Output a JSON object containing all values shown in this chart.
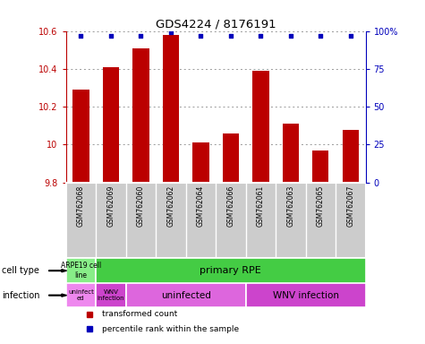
{
  "title": "GDS4224 / 8176191",
  "samples": [
    "GSM762068",
    "GSM762069",
    "GSM762060",
    "GSM762062",
    "GSM762064",
    "GSM762066",
    "GSM762061",
    "GSM762063",
    "GSM762065",
    "GSM762067"
  ],
  "transformed_counts": [
    10.29,
    10.41,
    10.51,
    10.58,
    10.01,
    10.06,
    10.39,
    10.11,
    9.97,
    10.08
  ],
  "percentile_ranks": [
    97,
    97,
    97,
    99,
    97,
    97,
    97,
    97,
    97,
    97
  ],
  "ylim": [
    9.8,
    10.6
  ],
  "yticks": [
    9.8,
    10.0,
    10.2,
    10.4,
    10.6
  ],
  "ytick_labels": [
    "9.8",
    "10",
    "10.2",
    "10.4",
    "10.6"
  ],
  "right_yticks": [
    0,
    25,
    50,
    75,
    100
  ],
  "right_ylim": [
    0,
    100
  ],
  "bar_color": "#bb0000",
  "dot_color": "#0000bb",
  "arpe_color": "#88ee88",
  "rpe_color": "#44cc44",
  "inf_uninfect1_color": "#ee88ee",
  "inf_wnv1_color": "#cc44cc",
  "inf_uninfect2_color": "#dd66dd",
  "inf_wnv2_color": "#cc44cc",
  "bg_color": "#ffffff",
  "grid_color": "#999999",
  "xlabels_bg": "#cccccc",
  "label_cell_type": "cell type",
  "label_infection": "infection",
  "legend_red": "transformed count",
  "legend_blue": "percentile rank within the sample"
}
